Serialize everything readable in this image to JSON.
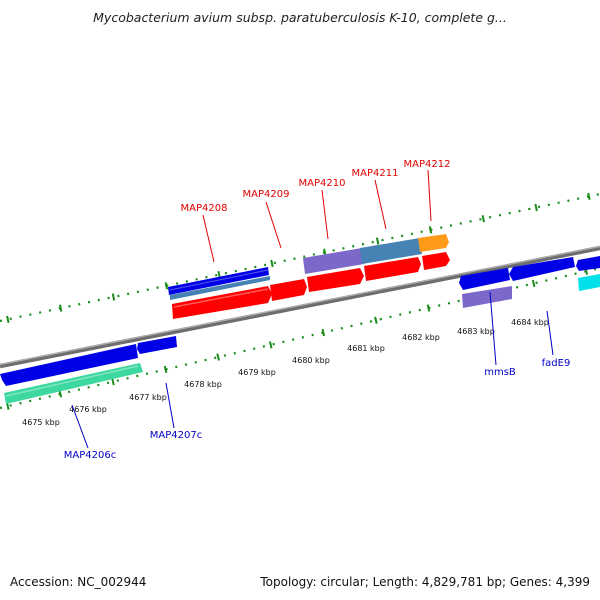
{
  "header": {
    "title": "Mycobacterium avium subsp. paratuberculosis K-10, complete g..."
  },
  "footer": {
    "accession": "Accession: NC_002944",
    "summary": "Topology: circular; Length: 4,829,781 bp; Genes: 4,399"
  },
  "colors": {
    "backbone": "#808080",
    "tick_dots": "#1a8c1a",
    "gene_blue": "#0000e6",
    "gene_red": "#ff0000",
    "gene_teal": "#3cd8a0",
    "gene_purple": "#7b68c8",
    "gene_steel": "#4682b4",
    "gene_orange": "#ff9a1a",
    "gene_cyan": "#00e0e8",
    "label_red": "#e00000",
    "label_blue": "#0000c8"
  },
  "scale_labels": [
    "4675 kbp",
    "4676 kbp",
    "4677 kbp",
    "4678 kbp",
    "4679 kbp",
    "4680 kbp",
    "4681 kbp",
    "4682 kbp",
    "4683 kbp",
    "4684 kbp"
  ],
  "labels_above": [
    "MAP4208",
    "MAP4209",
    "MAP4210",
    "MAP4211",
    "MAP4212"
  ],
  "labels_below": [
    "MAP4206c",
    "MAP4207c",
    "mmsB",
    "fadE9"
  ]
}
